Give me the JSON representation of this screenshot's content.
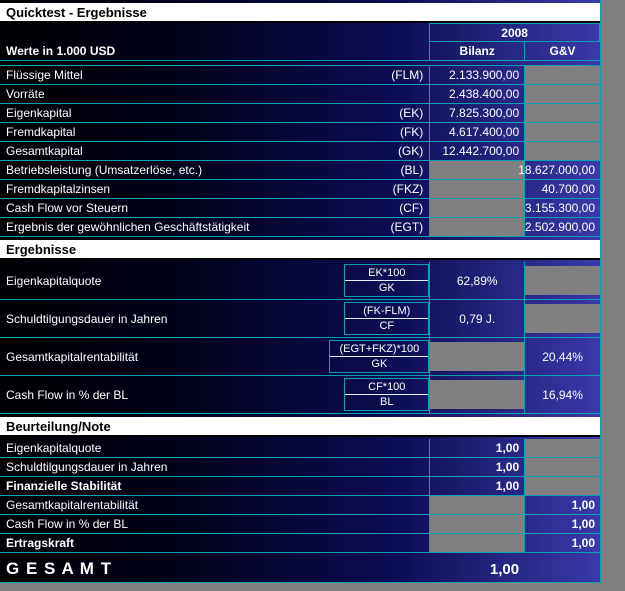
{
  "title": "Quicktest - Ergebnisse",
  "year": "2008",
  "columns": {
    "werte": "Werte in 1.000 USD",
    "bilanz": "Bilanz",
    "gv": "G&V"
  },
  "data_rows": [
    {
      "label": "Flüssige Mittel",
      "code": "(FLM)",
      "bilanz": "2.133.900,00"
    },
    {
      "label": "Vorräte",
      "code": "",
      "bilanz": "2.438.400,00"
    },
    {
      "label": "Eigenkapital",
      "code": "(EK)",
      "bilanz": "7.825.300,00"
    },
    {
      "label": "Fremdkapital",
      "code": "(FK)",
      "bilanz": "4.617.400,00"
    },
    {
      "label": "Gesamtkapital",
      "code": "(GK)",
      "bilanz": "12.442.700,00"
    },
    {
      "label": "Betriebsleistung (Umsatzerlöse, etc.)",
      "code": "(BL)",
      "gv": "18.627.000,00"
    },
    {
      "label": "Fremdkapitalzinsen",
      "code": "(FKZ)",
      "gv": "40.700,00"
    },
    {
      "label": "Cash Flow vor Steuern",
      "code": "(CF)",
      "gv": "3.155.300,00"
    },
    {
      "label": "Ergebnis der gewöhnlichen Geschäftstätigkeit",
      "code": "(EGT)",
      "gv": "2.502.900,00"
    }
  ],
  "ergebnisse": {
    "section_title": "Ergebnisse",
    "rows": [
      {
        "label": "Eigenkapitalquote",
        "formula_numerator": "EK*100",
        "formula_denominator": "GK",
        "value": "62,89%"
      },
      {
        "label": "Schuldtilgungsdauer in Jahren",
        "formula_numerator": "(FK-FLM)",
        "formula_denominator": "CF",
        "value": "0,79 J."
      },
      {
        "label": "Gesamtkapitalrentabilität",
        "formula_numerator": "(EGT+FKZ)*100",
        "formula_denominator": "GK",
        "value": "20,44%"
      },
      {
        "label": "Cash Flow in % der BL",
        "formula_numerator": "CF*100",
        "formula_denominator": "BL",
        "value": "16,94%"
      }
    ]
  },
  "beurteilung": {
    "section_title": "Beurteilung/Note",
    "rows": [
      {
        "label": "Eigenkapitalquote",
        "bilanz": "1,00"
      },
      {
        "label": "Schuldtilgungsdauer in Jahren",
        "bilanz": "1,00"
      },
      {
        "label": "Finanzielle Stabilität",
        "bilanz": "1,00"
      },
      {
        "label": "Gesamtkapitalrentabilität",
        "gv": "1,00"
      },
      {
        "label": "Cash Flow in % der BL",
        "gv": "1,00"
      },
      {
        "label": "Ertragskraft",
        "gv": "1,00"
      }
    ]
  },
  "gesamt": {
    "label": "G E S A M T",
    "value": "1,00"
  },
  "colors": {
    "grid_line": "#0aa0b4",
    "cell_gray": "#808080",
    "sheet_dark": "#000010",
    "sheet_light": "#3a3aaa",
    "section_header_bg": "#ffffff",
    "text": "#ffffff"
  }
}
